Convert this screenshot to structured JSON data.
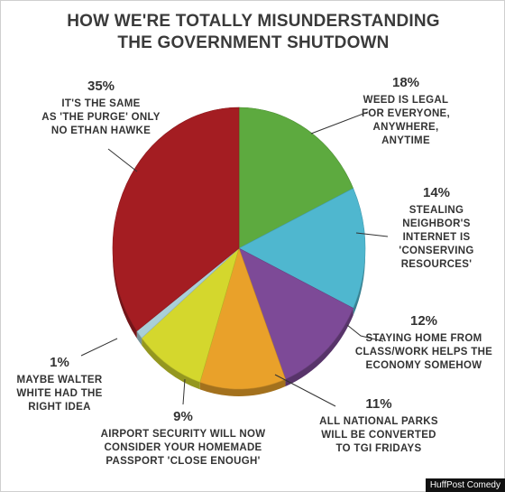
{
  "chart_data": {
    "type": "pie",
    "title_lines": [
      "HOW WE'RE TOTALLY MISUNDERSTANDING",
      "THE GOVERNMENT SHUTDOWN"
    ],
    "slices": [
      {
        "value": 18,
        "pct_label": "18%",
        "label_lines": [
          "WEED IS LEGAL",
          "FOR EVERYONE,",
          "ANYWHERE,",
          "ANYTIME"
        ],
        "color": "#5daa3f"
      },
      {
        "value": 14,
        "pct_label": "14%",
        "label_lines": [
          "STEALING",
          "NEIGHBOR'S",
          "INTERNET IS",
          "'CONSERVING",
          "RESOURCES'"
        ],
        "color": "#4fb7cf"
      },
      {
        "value": 12,
        "pct_label": "12%",
        "label_lines": [
          "STAYING HOME FROM",
          "CLASS/WORK HELPS THE",
          "ECONOMY SOMEHOW"
        ],
        "color": "#7d4a97"
      },
      {
        "value": 11,
        "pct_label": "11%",
        "label_lines": [
          "ALL NATIONAL PARKS",
          "WILL BE CONVERTED",
          "TO TGI FRIDAYS"
        ],
        "color": "#e9a12a"
      },
      {
        "value": 9,
        "pct_label": "9%",
        "label_lines": [
          "AIRPORT SECURITY WILL NOW",
          "CONSIDER YOUR HOMEMADE",
          "PASSPORT 'CLOSE ENOUGH'"
        ],
        "color": "#d4d72d"
      },
      {
        "value": 1,
        "pct_label": "1%",
        "label_lines": [
          "MAYBE WALTER",
          "WHITE HAD THE",
          "RIGHT IDEA"
        ],
        "color": "#a9cfd8"
      },
      {
        "value": 35,
        "pct_label": "35%",
        "label_lines": [
          "IT'S THE SAME",
          "AS 'THE PURGE' ONLY",
          "NO ETHAN HAWKE"
        ],
        "color": "#a41d22"
      }
    ]
  },
  "credit": "HuffPost Comedy"
}
